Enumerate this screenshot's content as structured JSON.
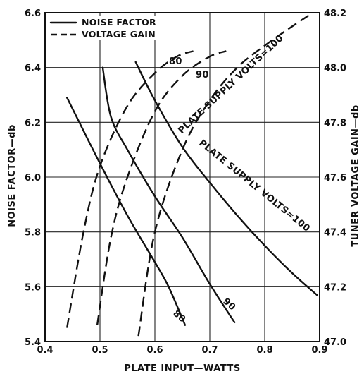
{
  "chart_data": {
    "type": "line",
    "xlabel": "PLATE INPUT—WATTS",
    "ylabel_left": "NOISE FACTOR—db",
    "ylabel_right": "TUNER VOLTAGE GAIN—db",
    "xlim": [
      0.4,
      0.9
    ],
    "ylim_left": [
      5.4,
      6.6
    ],
    "ylim_right": [
      47.0,
      48.2
    ],
    "x_ticks": [
      "0.4",
      "0.5",
      "0.6",
      "0.7",
      "0.8",
      "0.9"
    ],
    "y_ticks_left": [
      "5.4",
      "5.6",
      "5.8",
      "6.0",
      "6.2",
      "6.4",
      "6.6"
    ],
    "y_ticks_right": [
      "47.0",
      "47.2",
      "47.4",
      "47.6",
      "47.8",
      "48.0",
      "48.2"
    ],
    "grid": true,
    "legend": {
      "position": "top-left",
      "items": [
        {
          "label": "NOISE FACTOR",
          "style": "solid"
        },
        {
          "label": "VOLTAGE GAIN",
          "style": "dashed"
        }
      ]
    },
    "series": [
      {
        "group": "noise_factor",
        "axis": "left",
        "style": "solid",
        "label": "80",
        "points": [
          [
            0.44,
            6.29
          ],
          [
            0.5,
            6.05
          ],
          [
            0.55,
            5.86
          ],
          [
            0.6,
            5.69
          ],
          [
            0.625,
            5.6
          ],
          [
            0.655,
            5.46
          ]
        ]
      },
      {
        "group": "noise_factor",
        "axis": "left",
        "style": "solid",
        "label": "90",
        "points": [
          [
            0.505,
            6.4
          ],
          [
            0.52,
            6.22
          ],
          [
            0.55,
            6.1
          ],
          [
            0.6,
            5.93
          ],
          [
            0.65,
            5.78
          ],
          [
            0.7,
            5.61
          ],
          [
            0.745,
            5.47
          ]
        ]
      },
      {
        "group": "noise_factor",
        "axis": "left",
        "style": "solid",
        "label": "PLATE SUPPLY VOLTS=100",
        "points": [
          [
            0.565,
            6.42
          ],
          [
            0.6,
            6.28
          ],
          [
            0.65,
            6.11
          ],
          [
            0.7,
            5.98
          ],
          [
            0.75,
            5.86
          ],
          [
            0.8,
            5.75
          ],
          [
            0.85,
            5.65
          ],
          [
            0.895,
            5.57
          ]
        ]
      },
      {
        "group": "voltage_gain",
        "axis": "right",
        "style": "dashed",
        "label": "80",
        "points": [
          [
            0.44,
            47.05
          ],
          [
            0.47,
            47.4
          ],
          [
            0.5,
            47.64
          ],
          [
            0.55,
            47.86
          ],
          [
            0.6,
            47.98
          ],
          [
            0.64,
            48.04
          ],
          [
            0.67,
            48.06
          ]
        ]
      },
      {
        "group": "voltage_gain",
        "axis": "right",
        "style": "dashed",
        "label": "90",
        "points": [
          [
            0.495,
            47.06
          ],
          [
            0.52,
            47.38
          ],
          [
            0.55,
            47.6
          ],
          [
            0.6,
            47.84
          ],
          [
            0.65,
            47.97
          ],
          [
            0.7,
            48.04
          ],
          [
            0.73,
            48.06
          ]
        ]
      },
      {
        "group": "voltage_gain",
        "axis": "right",
        "style": "dashed",
        "label": "PLATE SUPPLY VOLTS=100",
        "points": [
          [
            0.57,
            47.02
          ],
          [
            0.6,
            47.4
          ],
          [
            0.65,
            47.7
          ],
          [
            0.7,
            47.88
          ],
          [
            0.75,
            48.0
          ],
          [
            0.8,
            48.08
          ],
          [
            0.85,
            48.15
          ],
          [
            0.88,
            48.19
          ]
        ]
      }
    ],
    "annotations": [
      {
        "text": "80",
        "near": "dashed 80 top end"
      },
      {
        "text": "90",
        "near": "dashed 90 top end"
      },
      {
        "text": "PLATE SUPPLY VOLTS=100",
        "near": "dashed 100 curve"
      },
      {
        "text": "PLATE SUPPLY VOLTS=100",
        "near": "solid 100 curve"
      },
      {
        "text": "80",
        "near": "solid 80 bottom end"
      },
      {
        "text": "90",
        "near": "solid 90 bottom end"
      }
    ]
  }
}
